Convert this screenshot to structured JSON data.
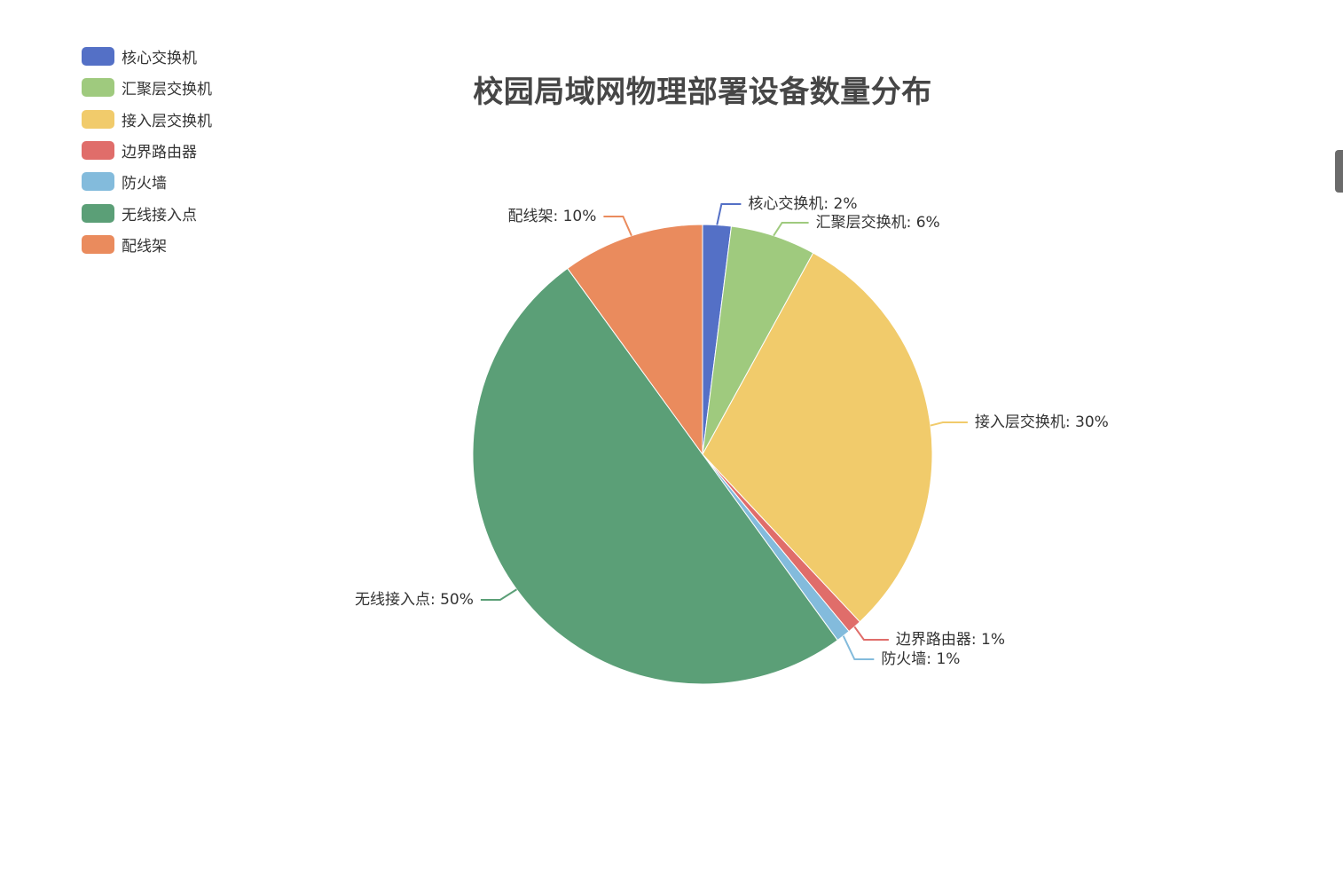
{
  "chart_data": {
    "type": "pie",
    "title": "校园局域网物理部署设备数量分布",
    "legend_position": "top-left",
    "categories": [
      "核心交换机",
      "汇聚层交换机",
      "接入层交换机",
      "边界路由器",
      "防火墙",
      "无线接入点",
      "配线架"
    ],
    "values": [
      2,
      6,
      30,
      1,
      1,
      50,
      10
    ],
    "labels": [
      "核心交换机: 2%",
      "汇聚层交换机: 6%",
      "接入层交换机: 30%",
      "边界路由器: 1%",
      "防火墙: 1%",
      "无线接入点: 50%",
      "配线架: 10%"
    ],
    "colors": [
      "#5470c6",
      "#9fca7e",
      "#f1cb6b",
      "#e06d6a",
      "#83bbdc",
      "#5b9f77",
      "#ea8b5d"
    ]
  }
}
